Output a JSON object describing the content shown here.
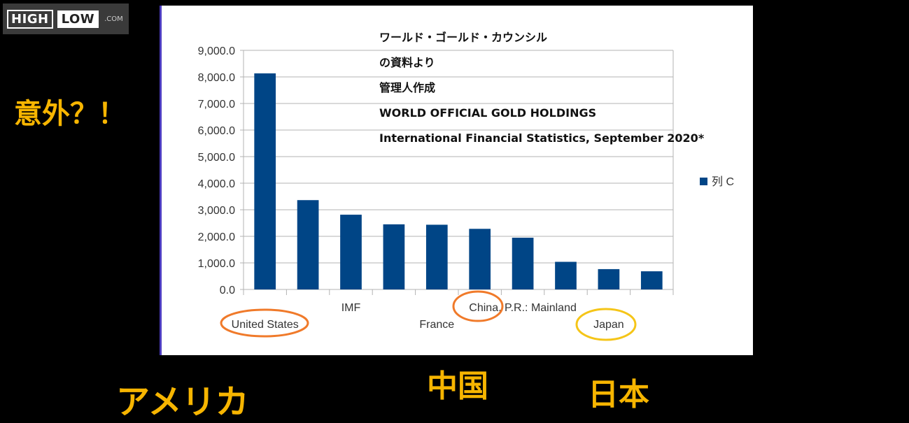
{
  "logo": {
    "high": "HIGH",
    "low": "LOW",
    "com": ".COM"
  },
  "notes": [
    "ワールド・ゴールド・カウンシル",
    "の資料より",
    "管理人作成",
    "WORLD OFFICIAL GOLD HOLDINGS",
    "International Financial Statistics, September 2020*"
  ],
  "side_labels": {
    "surprise": "意外？！",
    "america": "アメリカ",
    "china": "中国",
    "japan": "日本"
  },
  "colors": {
    "bar": "#004586",
    "accent": "#f7b500",
    "circle_orange": "#f07a2a",
    "circle_yellow": "#f5c518"
  },
  "chart_data": {
    "type": "bar",
    "categories": [
      "United States",
      "",
      "IMF",
      "",
      "France",
      "",
      "China, P.R.: Mainland",
      "",
      "Japan",
      ""
    ],
    "series": [
      {
        "name": "列 C",
        "values": [
          8133.5,
          3362.4,
          2814.0,
          2451.8,
          2436.2,
          2281.6,
          1948.3,
          1040.0,
          765.2,
          683.8
        ]
      }
    ],
    "ylim": [
      0,
      9000
    ],
    "yticks": [
      "0.0",
      "1,000.0",
      "2,000.0",
      "3,000.0",
      "4,000.0",
      "5,000.0",
      "6,000.0",
      "7,000.0",
      "8,000.0",
      "9,000.0"
    ],
    "grid": true,
    "legend": "right"
  }
}
